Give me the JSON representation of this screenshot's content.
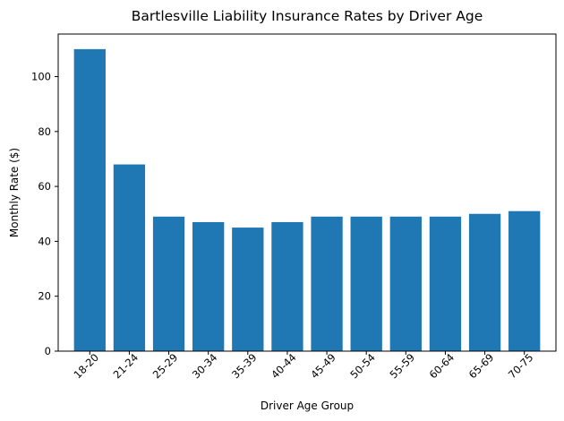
{
  "chart_data": {
    "type": "bar",
    "title": "Bartlesville Liability Insurance Rates by Driver Age",
    "xlabel": "Driver Age Group",
    "ylabel": "Monthly Rate ($)",
    "categories": [
      "18-20",
      "21-24",
      "25-29",
      "30-34",
      "35-39",
      "40-44",
      "45-49",
      "50-54",
      "55-59",
      "60-64",
      "65-69",
      "70-75"
    ],
    "values": [
      110,
      68,
      49,
      47,
      45,
      47,
      49,
      49,
      49,
      49,
      50,
      51
    ],
    "ylim": [
      0,
      115.5
    ],
    "yticks": [
      0,
      20,
      40,
      60,
      80,
      100
    ],
    "bar_color": "#1f77b4",
    "grid": false,
    "legend": "none"
  }
}
